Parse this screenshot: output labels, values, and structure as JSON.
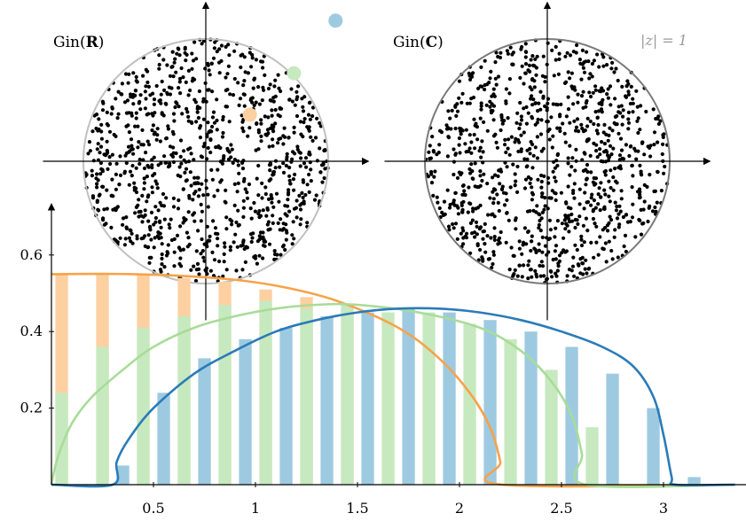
{
  "chart_data": [
    {
      "type": "scatter",
      "title_prefix": "Gin",
      "title_field": "R",
      "points_shown": "approximately 1000 eigenvalues, uniformly filling the unit disk",
      "unit_circle": true,
      "highlighted_points": [
        {
          "x": 0.36,
          "y": 0.38,
          "color": "#fdd0a2"
        },
        {
          "x": 0.72,
          "y": 0.72,
          "color": "#c7e9c0"
        },
        {
          "x": 1.06,
          "y": 1.15,
          "color": "#9ecae1"
        }
      ],
      "xlim": [
        -1.33,
        1.33
      ],
      "ylim": [
        -1.3,
        1.3
      ]
    },
    {
      "type": "scatter",
      "title_prefix": "Gin",
      "title_field": "C",
      "points_shown": "approximately 1000 eigenvalues, uniformly filling the unit disk",
      "unit_circle": true,
      "circle_label": "|z| = 1",
      "xlim": [
        -1.33,
        1.33
      ],
      "ylim": [
        -1.3,
        1.3
      ]
    },
    {
      "type": "bar",
      "xlim": [
        0,
        3.4
      ],
      "ylim": [
        0,
        0.72
      ],
      "x_ticks": [
        "0.5",
        "1",
        "1.5",
        "2",
        "2.5",
        "3"
      ],
      "y_ticks": [
        "0.2",
        "0.4",
        "0.6"
      ],
      "bin_width": 0.1,
      "series": [
        {
          "color": "#fdd0a2",
          "bars": [
            {
              "x": 0.05,
              "y": 0.55
            },
            {
              "x": 0.25,
              "y": 0.55
            },
            {
              "x": 0.45,
              "y": 0.55
            },
            {
              "x": 0.65,
              "y": 0.54
            },
            {
              "x": 0.85,
              "y": 0.53
            },
            {
              "x": 1.05,
              "y": 0.51
            },
            {
              "x": 1.25,
              "y": 0.49
            },
            {
              "x": 1.45,
              "y": 0.46
            },
            {
              "x": 1.65,
              "y": 0.38
            },
            {
              "x": 1.85,
              "y": 0.3
            },
            {
              "x": 2.05,
              "y": 0.17
            }
          ],
          "curve": [
            {
              "x": 0.0,
              "y": 0.55
            },
            {
              "x": 0.4,
              "y": 0.55
            },
            {
              "x": 0.8,
              "y": 0.54
            },
            {
              "x": 1.1,
              "y": 0.52
            },
            {
              "x": 1.4,
              "y": 0.48
            },
            {
              "x": 1.7,
              "y": 0.41
            },
            {
              "x": 1.9,
              "y": 0.33
            },
            {
              "x": 2.05,
              "y": 0.24
            },
            {
              "x": 2.15,
              "y": 0.15
            },
            {
              "x": 2.2,
              "y": 0.06
            },
            {
              "x": 2.21,
              "y": 0.0
            },
            {
              "x": 3.35,
              "y": 0.0
            }
          ]
        },
        {
          "color": "#c7e9c0",
          "bars": [
            {
              "x": 0.05,
              "y": 0.24
            },
            {
              "x": 0.25,
              "y": 0.36
            },
            {
              "x": 0.45,
              "y": 0.41
            },
            {
              "x": 0.65,
              "y": 0.44
            },
            {
              "x": 0.85,
              "y": 0.47
            },
            {
              "x": 1.05,
              "y": 0.48
            },
            {
              "x": 1.25,
              "y": 0.46
            },
            {
              "x": 1.45,
              "y": 0.47
            },
            {
              "x": 1.65,
              "y": 0.45
            },
            {
              "x": 1.85,
              "y": 0.45
            },
            {
              "x": 2.05,
              "y": 0.42
            },
            {
              "x": 2.25,
              "y": 0.38
            },
            {
              "x": 2.45,
              "y": 0.3
            },
            {
              "x": 2.65,
              "y": 0.15
            }
          ],
          "curve": [
            {
              "x": 0.0,
              "y": 0.0
            },
            {
              "x": 0.03,
              "y": 0.07
            },
            {
              "x": 0.1,
              "y": 0.16
            },
            {
              "x": 0.2,
              "y": 0.23
            },
            {
              "x": 0.35,
              "y": 0.3
            },
            {
              "x": 0.5,
              "y": 0.36
            },
            {
              "x": 0.7,
              "y": 0.41
            },
            {
              "x": 0.9,
              "y": 0.44
            },
            {
              "x": 1.1,
              "y": 0.46
            },
            {
              "x": 1.3,
              "y": 0.47
            },
            {
              "x": 1.5,
              "y": 0.47
            },
            {
              "x": 1.8,
              "y": 0.45
            },
            {
              "x": 2.1,
              "y": 0.41
            },
            {
              "x": 2.3,
              "y": 0.35
            },
            {
              "x": 2.45,
              "y": 0.27
            },
            {
              "x": 2.55,
              "y": 0.18
            },
            {
              "x": 2.6,
              "y": 0.08
            },
            {
              "x": 2.62,
              "y": 0.0
            },
            {
              "x": 3.35,
              "y": 0.0
            }
          ]
        },
        {
          "color": "#2b7bb9",
          "bar_color": "#9ecae1",
          "bars": [
            {
              "x": 0.35,
              "y": 0.05
            },
            {
              "x": 0.55,
              "y": 0.24
            },
            {
              "x": 0.75,
              "y": 0.33
            },
            {
              "x": 0.95,
              "y": 0.38
            },
            {
              "x": 1.15,
              "y": 0.41
            },
            {
              "x": 1.35,
              "y": 0.44
            },
            {
              "x": 1.55,
              "y": 0.45
            },
            {
              "x": 1.75,
              "y": 0.46
            },
            {
              "x": 1.95,
              "y": 0.45
            },
            {
              "x": 2.15,
              "y": 0.43
            },
            {
              "x": 2.35,
              "y": 0.4
            },
            {
              "x": 2.55,
              "y": 0.36
            },
            {
              "x": 2.75,
              "y": 0.29
            },
            {
              "x": 2.95,
              "y": 0.2
            },
            {
              "x": 3.15,
              "y": 0.02
            }
          ],
          "curve": [
            {
              "x": 0.0,
              "y": 0.0
            },
            {
              "x": 0.3,
              "y": 0.0
            },
            {
              "x": 0.32,
              "y": 0.06
            },
            {
              "x": 0.38,
              "y": 0.12
            },
            {
              "x": 0.5,
              "y": 0.2
            },
            {
              "x": 0.7,
              "y": 0.29
            },
            {
              "x": 0.9,
              "y": 0.35
            },
            {
              "x": 1.1,
              "y": 0.4
            },
            {
              "x": 1.3,
              "y": 0.43
            },
            {
              "x": 1.5,
              "y": 0.45
            },
            {
              "x": 1.7,
              "y": 0.46
            },
            {
              "x": 1.9,
              "y": 0.46
            },
            {
              "x": 2.1,
              "y": 0.45
            },
            {
              "x": 2.3,
              "y": 0.43
            },
            {
              "x": 2.5,
              "y": 0.4
            },
            {
              "x": 2.7,
              "y": 0.36
            },
            {
              "x": 2.85,
              "y": 0.31
            },
            {
              "x": 2.95,
              "y": 0.23
            },
            {
              "x": 3.0,
              "y": 0.13
            },
            {
              "x": 3.04,
              "y": 0.02
            },
            {
              "x": 3.06,
              "y": 0.0
            },
            {
              "x": 3.35,
              "y": 0.0
            }
          ]
        }
      ]
    }
  ]
}
